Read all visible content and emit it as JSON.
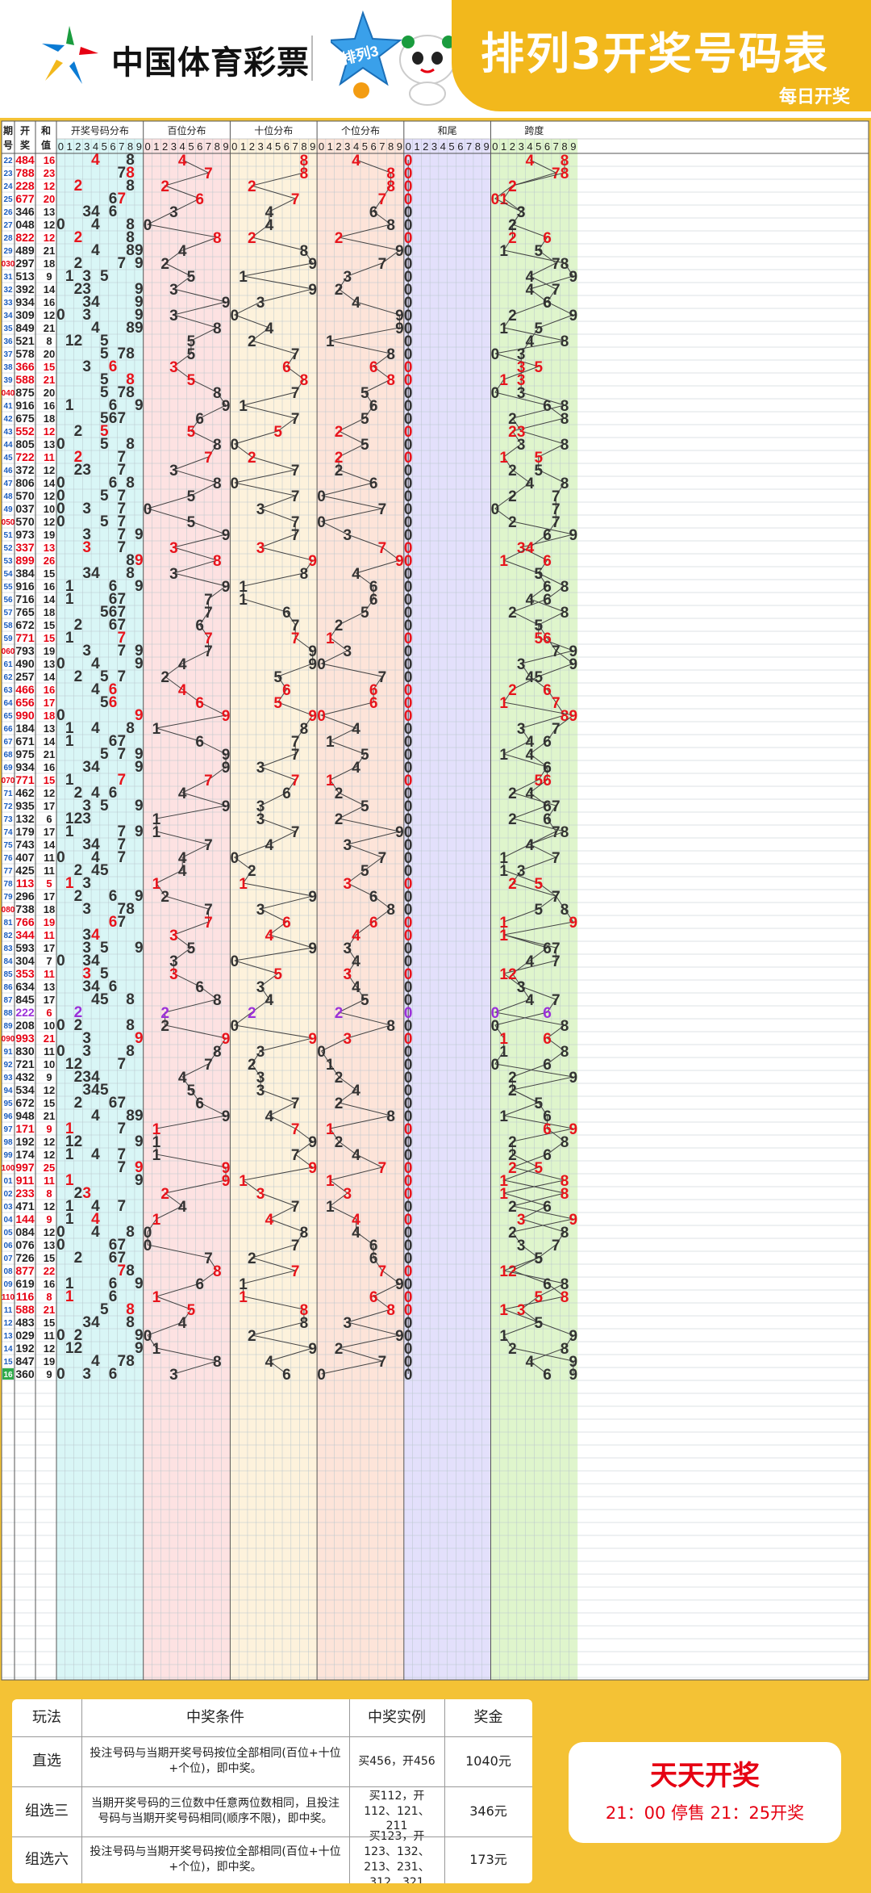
{
  "header": {
    "brand": "中国体育彩票",
    "badge": "排列3",
    "title": "排列3开奖号码表",
    "subtitle": "每日开奖"
  },
  "chart_data": {
    "type": "table",
    "column_headers": {
      "issue": "期号",
      "draw": "开奖",
      "sum": "和值",
      "groups": [
        "开奖号码分布",
        "百位分布",
        "十位分布",
        "个位分布",
        "和尾",
        "跨度"
      ],
      "digits": [
        "0",
        "1",
        "2",
        "3",
        "4",
        "5",
        "6",
        "7",
        "8",
        "9"
      ]
    },
    "rows": [
      {
        "issue": "22",
        "draw": "484",
        "sum": "16",
        "ds": "048"
      },
      {
        "issue": "23",
        "draw": "788",
        "sum": "23",
        "ds": "078"
      },
      {
        "issue": "24",
        "draw": "228",
        "sum": "12",
        "ds": "022"
      },
      {
        "issue": "25",
        "draw": "677",
        "sum": "20",
        "ds": "010"
      },
      {
        "issue": "26",
        "draw": "346",
        "sum": "13",
        "ds": "033"
      },
      {
        "issue": "27",
        "draw": "048",
        "sum": "12",
        "ds": "022"
      },
      {
        "issue": "28",
        "draw": "822",
        "sum": "12",
        "ds": "026"
      },
      {
        "issue": "29",
        "draw": "489",
        "sum": "21",
        "ds": "015"
      },
      {
        "issue": "030",
        "draw": "297",
        "sum": "18",
        "ds": "087"
      },
      {
        "issue": "31",
        "draw": "513",
        "sum": "9",
        "ds": "094"
      },
      {
        "issue": "32",
        "draw": "392",
        "sum": "14",
        "ds": "047"
      },
      {
        "issue": "33",
        "draw": "934",
        "sum": "16",
        "ds": "066"
      },
      {
        "issue": "34",
        "draw": "309",
        "sum": "12",
        "ds": "029"
      },
      {
        "issue": "35",
        "draw": "849",
        "sum": "21",
        "ds": "015"
      },
      {
        "issue": "36",
        "draw": "521",
        "sum": "8",
        "ds": "084"
      },
      {
        "issue": "37",
        "draw": "578",
        "sum": "20",
        "ds": "003"
      },
      {
        "issue": "38",
        "draw": "366",
        "sum": "15",
        "ds": "053"
      },
      {
        "issue": "39",
        "draw": "588",
        "sum": "21",
        "ds": "013"
      },
      {
        "issue": "040",
        "draw": "875",
        "sum": "20",
        "ds": "003"
      },
      {
        "issue": "41",
        "draw": "916",
        "sum": "16",
        "ds": "068"
      },
      {
        "issue": "42",
        "draw": "675",
        "sum": "18",
        "ds": "082"
      },
      {
        "issue": "43",
        "draw": "552",
        "sum": "12",
        "ds": "023"
      },
      {
        "issue": "44",
        "draw": "805",
        "sum": "13",
        "ds": "038"
      },
      {
        "issue": "45",
        "draw": "722",
        "sum": "11",
        "ds": "015"
      },
      {
        "issue": "46",
        "draw": "372",
        "sum": "12",
        "ds": "025"
      },
      {
        "issue": "47",
        "draw": "806",
        "sum": "14",
        "ds": "048"
      },
      {
        "issue": "48",
        "draw": "570",
        "sum": "12",
        "ds": "027"
      },
      {
        "issue": "49",
        "draw": "037",
        "sum": "10",
        "ds": "007"
      },
      {
        "issue": "050",
        "draw": "570",
        "sum": "12",
        "ds": "027"
      },
      {
        "issue": "51",
        "draw": "973",
        "sum": "19",
        "ds": "096"
      },
      {
        "issue": "52",
        "draw": "337",
        "sum": "13",
        "ds": "034"
      },
      {
        "issue": "53",
        "draw": "899",
        "sum": "26",
        "ds": "061"
      },
      {
        "issue": "54",
        "draw": "384",
        "sum": "15",
        "ds": "055"
      },
      {
        "issue": "55",
        "draw": "916",
        "sum": "16",
        "ds": "068"
      },
      {
        "issue": "56",
        "draw": "716",
        "sum": "14",
        "ds": "046"
      },
      {
        "issue": "57",
        "draw": "765",
        "sum": "18",
        "ds": "082"
      },
      {
        "issue": "58",
        "draw": "672",
        "sum": "15",
        "ds": "055"
      },
      {
        "issue": "59",
        "draw": "771",
        "sum": "15",
        "ds": "056"
      },
      {
        "issue": "060",
        "draw": "793",
        "sum": "19",
        "ds": "097"
      },
      {
        "issue": "61",
        "draw": "490",
        "sum": "13",
        "ds": "039"
      },
      {
        "issue": "62",
        "draw": "257",
        "sum": "14",
        "ds": "045"
      },
      {
        "issue": "63",
        "draw": "466",
        "sum": "16",
        "ds": "062"
      },
      {
        "issue": "64",
        "draw": "656",
        "sum": "17",
        "ds": "071"
      },
      {
        "issue": "65",
        "draw": "990",
        "sum": "18",
        "ds": "089"
      },
      {
        "issue": "66",
        "draw": "184",
        "sum": "13",
        "ds": "037"
      },
      {
        "issue": "67",
        "draw": "671",
        "sum": "14",
        "ds": "046"
      },
      {
        "issue": "68",
        "draw": "975",
        "sum": "21",
        "ds": "014"
      },
      {
        "issue": "69",
        "draw": "934",
        "sum": "16",
        "ds": "066"
      },
      {
        "issue": "070",
        "draw": "771",
        "sum": "15",
        "ds": "056"
      },
      {
        "issue": "71",
        "draw": "462",
        "sum": "12",
        "ds": "024"
      },
      {
        "issue": "72",
        "draw": "935",
        "sum": "17",
        "ds": "076"
      },
      {
        "issue": "73",
        "draw": "132",
        "sum": "6",
        "ds": "062"
      },
      {
        "issue": "74",
        "draw": "179",
        "sum": "17",
        "ds": "078"
      },
      {
        "issue": "75",
        "draw": "743",
        "sum": "14",
        "ds": "044"
      },
      {
        "issue": "76",
        "draw": "407",
        "sum": "11",
        "ds": "017"
      },
      {
        "issue": "77",
        "draw": "425",
        "sum": "11",
        "ds": "013"
      },
      {
        "issue": "78",
        "draw": "113",
        "sum": "5",
        "ds": "052"
      },
      {
        "issue": "79",
        "draw": "296",
        "sum": "17",
        "ds": "077"
      },
      {
        "issue": "080",
        "draw": "738",
        "sum": "18",
        "ds": "085"
      },
      {
        "issue": "81",
        "draw": "766",
        "sum": "19",
        "ds": "091"
      },
      {
        "issue": "82",
        "draw": "344",
        "sum": "11",
        "ds": "011"
      },
      {
        "issue": "83",
        "draw": "593",
        "sum": "17",
        "ds": "076"
      },
      {
        "issue": "84",
        "draw": "304",
        "sum": "7",
        "ds": "074"
      },
      {
        "issue": "85",
        "draw": "353",
        "sum": "11",
        "ds": "012"
      },
      {
        "issue": "86",
        "draw": "634",
        "sum": "13",
        "ds": "033"
      },
      {
        "issue": "87",
        "draw": "845",
        "sum": "17",
        "ds": "074"
      },
      {
        "issue": "88",
        "draw": "222",
        "sum": "6",
        "ds": "060"
      },
      {
        "issue": "89",
        "draw": "208",
        "sum": "10",
        "ds": "008"
      },
      {
        "issue": "090",
        "draw": "993",
        "sum": "21",
        "ds": "016"
      },
      {
        "issue": "91",
        "draw": "830",
        "sum": "11",
        "ds": "018"
      },
      {
        "issue": "92",
        "draw": "721",
        "sum": "10",
        "ds": "006"
      },
      {
        "issue": "93",
        "draw": "432",
        "sum": "9",
        "ds": "092"
      },
      {
        "issue": "94",
        "draw": "534",
        "sum": "12",
        "ds": "022"
      },
      {
        "issue": "95",
        "draw": "672",
        "sum": "15",
        "ds": "055"
      },
      {
        "issue": "96",
        "draw": "948",
        "sum": "21",
        "ds": "016"
      },
      {
        "issue": "97",
        "draw": "171",
        "sum": "9",
        "ds": "096"
      },
      {
        "issue": "98",
        "draw": "192",
        "sum": "12",
        "ds": "028"
      },
      {
        "issue": "99",
        "draw": "174",
        "sum": "12",
        "ds": "026"
      },
      {
        "issue": "100",
        "draw": "997",
        "sum": "25",
        "ds": "052"
      },
      {
        "issue": "01",
        "draw": "911",
        "sum": "11",
        "ds": "018"
      },
      {
        "issue": "02",
        "draw": "233",
        "sum": "8",
        "ds": "081"
      },
      {
        "issue": "03",
        "draw": "471",
        "sum": "12",
        "ds": "026"
      },
      {
        "issue": "04",
        "draw": "144",
        "sum": "9",
        "ds": "093"
      },
      {
        "issue": "05",
        "draw": "084",
        "sum": "12",
        "ds": "028"
      },
      {
        "issue": "06",
        "draw": "076",
        "sum": "13",
        "ds": "037"
      },
      {
        "issue": "07",
        "draw": "726",
        "sum": "15",
        "ds": "055"
      },
      {
        "issue": "08",
        "draw": "877",
        "sum": "22",
        "ds": "021"
      },
      {
        "issue": "09",
        "draw": "619",
        "sum": "16",
        "ds": "068"
      },
      {
        "issue": "110",
        "draw": "116",
        "sum": "8",
        "ds": "085"
      },
      {
        "issue": "11",
        "draw": "588",
        "sum": "21",
        "ds": "013"
      },
      {
        "issue": "12",
        "draw": "483",
        "sum": "15",
        "ds": "055"
      },
      {
        "issue": "13",
        "draw": "029",
        "sum": "11",
        "ds": "019"
      },
      {
        "issue": "14",
        "draw": "192",
        "sum": "12",
        "ds": "028"
      },
      {
        "issue": "15",
        "draw": "847",
        "sum": "19",
        "ds": "094"
      },
      {
        "issue": "16",
        "draw": "360",
        "sum": "9",
        "ds": "096"
      }
    ]
  },
  "footer": {
    "headers": [
      "玩法",
      "中奖条件",
      "中奖实例",
      "奖金"
    ],
    "rows": [
      {
        "play": "直选",
        "cond": "投注号码与当期开奖号码按位全部相同(百位+十位+个位)，即中奖。",
        "example": "买456，开456",
        "prize": "1040元"
      },
      {
        "play": "组选三",
        "cond": "当期开奖号码的三位数中任意两位数相同，且投注号码与当期开奖号码相同(顺序不限)，即中奖。",
        "example": "买112，开112、121、211",
        "prize": "346元"
      },
      {
        "play": "组选六",
        "cond": "投注号码与当期开奖号码按位全部相同(百位+十位+个位)，即中奖。",
        "example": "买123，开123、132、213、231、312、321",
        "prize": "173元"
      }
    ],
    "daily_title": "天天开奖",
    "daily_time": "21：00 停售 21：25开奖"
  },
  "colors": {
    "accent_yellow": "#f2b81c",
    "red": "#e60012",
    "hit_red": "#e8141c",
    "purple": "#9b30d9",
    "zone_colors": [
      "#d9f6f6",
      "#fde2e2",
      "#fdf2dc",
      "#fde4d9",
      "#e3e0fb",
      "#dff5cc"
    ]
  }
}
